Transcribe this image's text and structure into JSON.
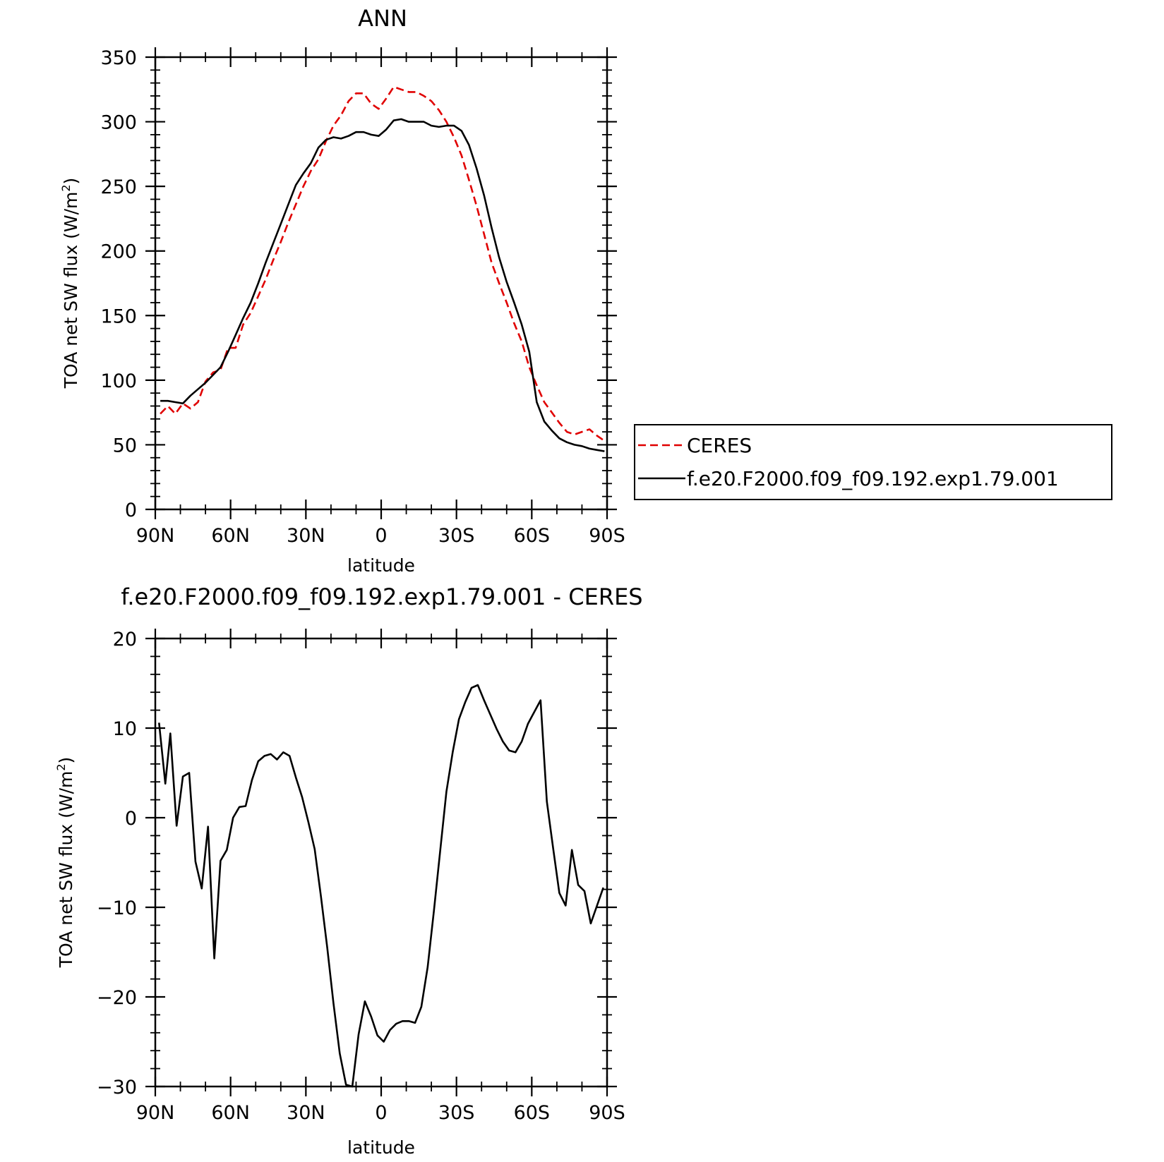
{
  "chart_data": [
    {
      "type": "line",
      "title": "ANN",
      "xlabel": "latitude",
      "ylabel": "TOA net SW flux (W/m",
      "ylabel_sup": "2",
      "ylabel_tail": ")",
      "xlim": [
        90,
        -90
      ],
      "ylim": [
        0,
        350
      ],
      "x_ticks": [
        90,
        60,
        30,
        0,
        -30,
        -60,
        -90
      ],
      "x_tick_labels": [
        "90N",
        "60N",
        "30N",
        "0",
        "30S",
        "60S",
        "90S"
      ],
      "y_ticks": [
        0,
        50,
        100,
        150,
        200,
        250,
        300,
        350
      ],
      "y_tick_labels": [
        "0",
        "50",
        "100",
        "150",
        "200",
        "250",
        "300",
        "350"
      ],
      "legend": {
        "placement": "right",
        "entries": [
          {
            "label": "CERES",
            "color": "#e00000",
            "dash": true
          },
          {
            "label": "f.e20.F2000.f09_f09.192.exp1.79.001",
            "color": "#000000",
            "dash": false
          }
        ]
      },
      "series": [
        {
          "name": "CERES",
          "color": "#e00000",
          "dash": true,
          "x": [
            88,
            85,
            82,
            79,
            76,
            73,
            70,
            67,
            64,
            61,
            58,
            55,
            52,
            49,
            46,
            43,
            40,
            37,
            34,
            31,
            28,
            25,
            22,
            19,
            16,
            13,
            10,
            7,
            4,
            1,
            -2,
            -5,
            -8,
            -11,
            -14,
            -17,
            -20,
            -23,
            -26,
            -29,
            -32,
            -35,
            -38,
            -41,
            -44,
            -47,
            -50,
            -53,
            -56,
            -59,
            -62,
            -65,
            -68,
            -71,
            -74,
            -77,
            -80,
            -83,
            -86,
            -89
          ],
          "y": [
            74,
            80,
            74,
            82,
            78,
            83,
            99,
            106,
            108,
            125,
            125,
            143,
            152,
            165,
            178,
            193,
            207,
            222,
            236,
            250,
            262,
            271,
            285,
            297,
            305,
            316,
            322,
            322,
            314,
            310,
            318,
            327,
            325,
            323,
            323,
            320,
            316,
            309,
            300,
            288,
            274,
            255,
            235,
            213,
            191,
            175,
            160,
            144,
            130,
            110,
            96,
            83,
            75,
            67,
            60,
            58,
            60,
            62,
            57,
            53
          ]
        },
        {
          "name": "f.e20.F2000.f09_f09.192.exp1.79.001",
          "color": "#000000",
          "dash": false,
          "x": [
            88,
            85,
            82,
            79,
            76,
            73,
            70,
            67,
            64,
            61,
            58,
            55,
            52,
            49,
            46,
            43,
            40,
            37,
            34,
            31,
            28,
            25,
            22,
            19,
            16,
            13,
            10,
            7,
            4,
            1,
            -2,
            -5,
            -8,
            -11,
            -14,
            -17,
            -20,
            -23,
            -26,
            -29,
            -32,
            -35,
            -38,
            -41,
            -44,
            -47,
            -50,
            -53,
            -56,
            -59,
            -62,
            -65,
            -68,
            -71,
            -74,
            -77,
            -80,
            -83,
            -86,
            -89
          ],
          "y": [
            84,
            84,
            83,
            82,
            88,
            93,
            98,
            104,
            110,
            122,
            135,
            148,
            160,
            175,
            191,
            206,
            221,
            236,
            251,
            260,
            268,
            280,
            286,
            288,
            287,
            289,
            292,
            292,
            290,
            289,
            294,
            301,
            302,
            300,
            300,
            300,
            297,
            296,
            297,
            297,
            293,
            282,
            264,
            243,
            218,
            195,
            176,
            160,
            143,
            122,
            83,
            68,
            61,
            55,
            52,
            50,
            49,
            47,
            46,
            45
          ]
        }
      ]
    },
    {
      "type": "line",
      "title": "f.e20.F2000.f09_f09.192.exp1.79.001 - CERES",
      "xlabel": "latitude",
      "ylabel": "TOA net SW flux (W/m",
      "ylabel_sup": "2",
      "ylabel_tail": ")",
      "xlim": [
        90,
        -90
      ],
      "ylim": [
        -30,
        20
      ],
      "x_ticks": [
        90,
        60,
        30,
        0,
        -30,
        -60,
        -90
      ],
      "x_tick_labels": [
        "90N",
        "60N",
        "30N",
        "0",
        "30S",
        "60S",
        "90S"
      ],
      "y_ticks": [
        -30,
        -20,
        -10,
        0,
        10,
        20
      ],
      "y_tick_labels": [
        "−30",
        "−20",
        "−10",
        "0",
        "10",
        "20"
      ],
      "series": [
        {
          "color": "#000000",
          "dash": false,
          "x": [
            88.5,
            86,
            84,
            81.5,
            79,
            76.5,
            74,
            71.5,
            69,
            66.5,
            64,
            61.5,
            59,
            56.5,
            54,
            51.5,
            49,
            46.5,
            44,
            41.5,
            39,
            36.5,
            34,
            31.5,
            29,
            26.5,
            24,
            21.5,
            19,
            16.5,
            14,
            11.5,
            9,
            6.5,
            4,
            1.5,
            -1,
            -3.5,
            -6,
            -8.5,
            -11,
            -13.5,
            -16,
            -18.5,
            -21,
            -23.5,
            -26,
            -28.5,
            -31,
            -33.5,
            -36,
            -38.5,
            -41,
            -43.5,
            -46,
            -48.5,
            -51,
            -53.5,
            -56,
            -58.5,
            -61,
            -63.5,
            -66,
            -68.5,
            -71,
            -73.5,
            -76,
            -78.5,
            -81,
            -83.5,
            -86,
            -88.5
          ],
          "y": [
            10.6,
            3.8,
            9.4,
            -0.9,
            4.6,
            5.0,
            -4.9,
            -7.9,
            -1.0,
            -15.7,
            -4.8,
            -3.6,
            0.0,
            1.2,
            1.3,
            4.2,
            6.3,
            6.9,
            7.1,
            6.5,
            7.3,
            6.9,
            4.5,
            2.3,
            -0.5,
            -3.5,
            -8.8,
            -14.5,
            -20.7,
            -26.3,
            -29.8,
            -30.0,
            -24.2,
            -20.5,
            -22.2,
            -24.3,
            -25.0,
            -23.7,
            -23.0,
            -22.7,
            -22.7,
            -22.9,
            -21.1,
            -16.7,
            -10.4,
            -3.7,
            2.9,
            7.3,
            11.0,
            12.9,
            14.5,
            14.8,
            13.1,
            11.5,
            9.9,
            8.5,
            7.5,
            7.3,
            8.5,
            10.5,
            11.8,
            13.1,
            1.8,
            -3.4,
            -8.4,
            -9.8,
            -3.6,
            -7.5,
            -8.2,
            -11.8,
            -9.8,
            -7.8
          ]
        }
      ]
    }
  ]
}
